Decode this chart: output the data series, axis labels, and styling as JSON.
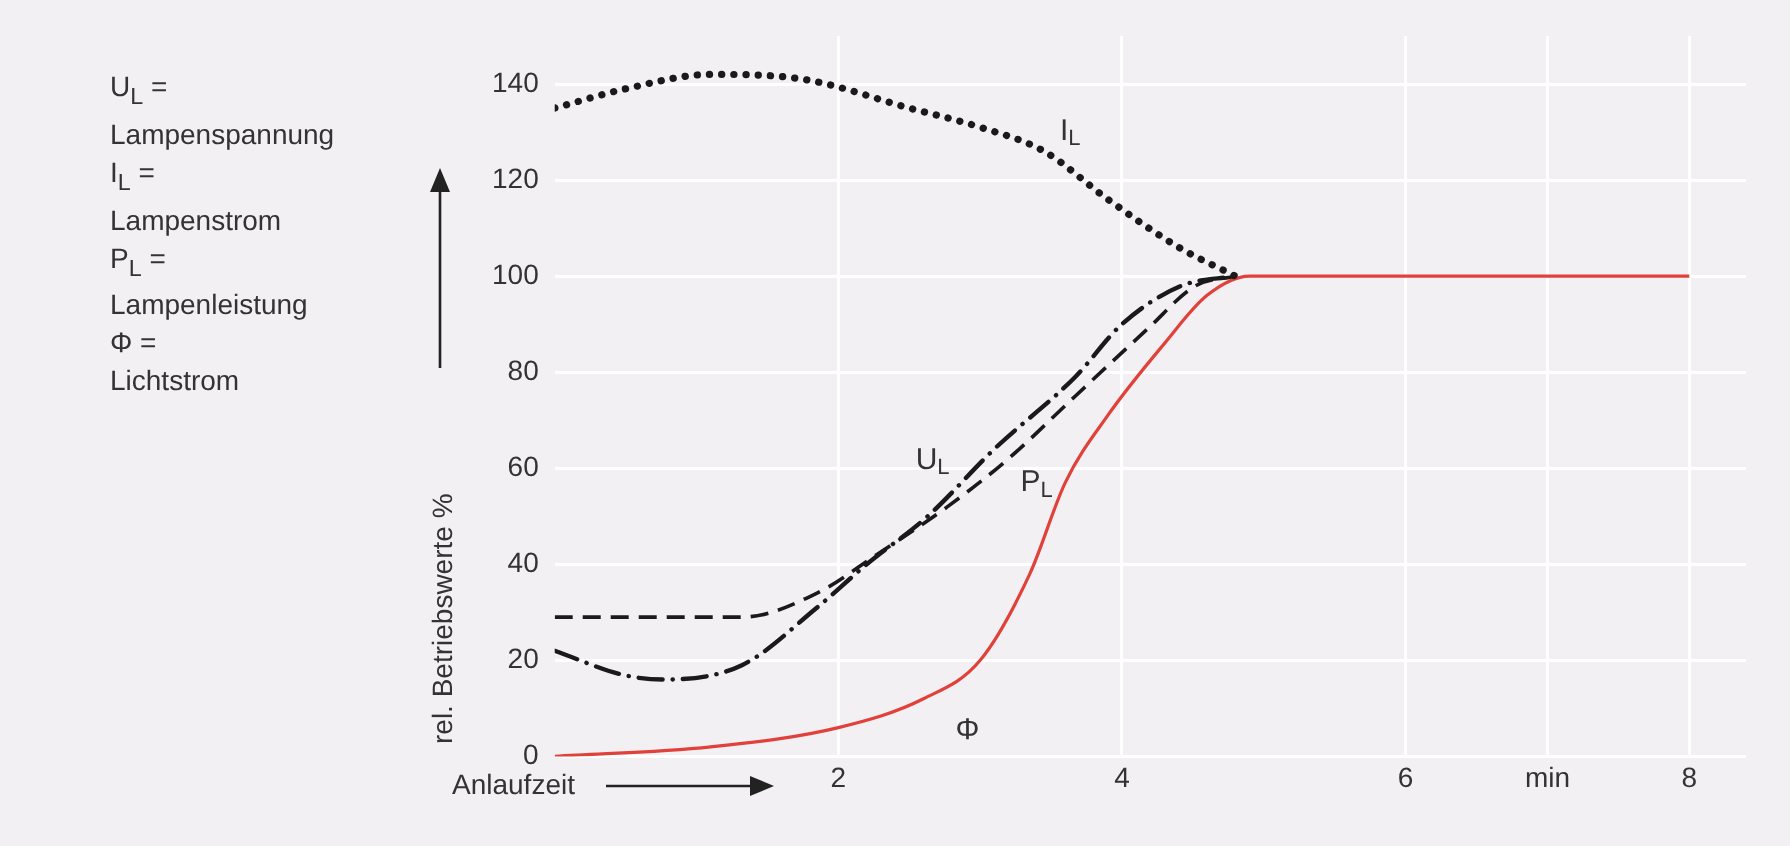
{
  "chart_data": {
    "type": "line",
    "xlabel": "Anlaufzeit",
    "ylabel": "rel. Betriebswerte %",
    "xlim": [
      0,
      8.4
    ],
    "ylim": [
      0,
      150
    ],
    "xticks": [
      2,
      4,
      6,
      {
        "value": 7,
        "label": "min"
      },
      8
    ],
    "yticks": [
      0,
      20,
      40,
      60,
      80,
      100,
      120,
      140
    ],
    "grid": true,
    "legend": false,
    "marker": "none",
    "annotations": [
      "U$_{L}$ =",
      "Lampenspannung",
      "I$_{L}$ =",
      "Lampenstrom",
      "P$_{L}$ =",
      "Lampenleistung",
      "Φ =",
      "Lichtstrom"
    ],
    "series": [
      {
        "name": "I$_{L}$",
        "color": "#1a1a1a",
        "line_style": "dotted",
        "x": [
          0,
          0.5,
          1.1,
          1.75,
          2.5,
          3.0,
          3.45,
          3.9,
          4.4,
          4.8
        ],
        "values": [
          135,
          139,
          142,
          141,
          135,
          131,
          126,
          116,
          106,
          100
        ]
      },
      {
        "name": "U$_{L}$",
        "color": "#1a1a1a",
        "line_style": "dashdot",
        "x": [
          0,
          0.48,
          0.76,
          1.32,
          1.85,
          2.2,
          2.63,
          3.1,
          3.67,
          4.0,
          4.42,
          4.8
        ],
        "values": [
          22,
          17,
          16,
          19,
          31,
          40,
          50,
          64,
          79,
          90,
          98,
          100
        ]
      },
      {
        "name": "P$_{L}$",
        "color": "#1a1a1a",
        "line_style": "dashed",
        "x": [
          0,
          1.32,
          1.85,
          2.27,
          2.77,
          3.2,
          3.67,
          4.18,
          4.52,
          4.8
        ],
        "values": [
          29,
          29,
          34,
          42,
          52,
          62,
          75,
          89,
          98,
          100
        ]
      },
      {
        "name": "Φ",
        "color": "#e0413a",
        "line_style": "solid",
        "x": [
          0,
          1.1,
          2,
          2.6,
          3,
          3.35,
          3.6,
          3.9,
          4.3,
          4.6,
          4.9,
          8
        ],
        "values": [
          0,
          2,
          6,
          12,
          20,
          38,
          57,
          71,
          86,
          96,
          100,
          100
        ]
      }
    ]
  }
}
